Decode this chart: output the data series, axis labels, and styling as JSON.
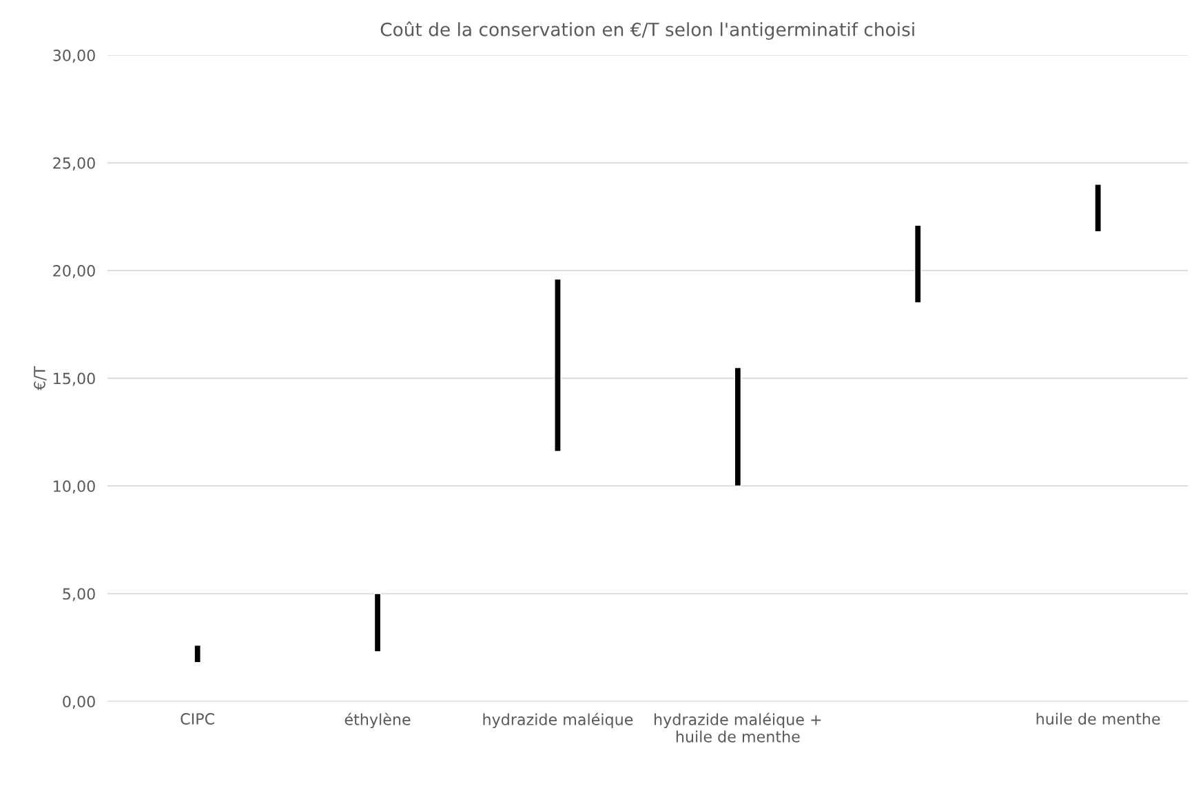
{
  "chart_data": {
    "type": "bar",
    "title": "Coût de la conservation en €/T selon l'antigerminatif choisi",
    "ylabel": "€/T",
    "categories": [
      "CIPC",
      "éthylène",
      "hydrazide maléique",
      "hydrazide maléique + huile de menthe",
      null,
      "huile de menthe"
    ],
    "base": [
      1.8,
      2.3,
      11.6,
      10.0,
      18.5,
      21.8
    ],
    "values": [
      0.8,
      2.7,
      8.0,
      5.5,
      3.6,
      2.2
    ],
    "color": "#000000",
    "ylim": [
      0,
      30
    ],
    "yticks": [
      {
        "value": 0,
        "label": "0,00"
      },
      {
        "value": 5,
        "label": "5,00"
      },
      {
        "value": 10,
        "label": "10,00"
      },
      {
        "value": 15,
        "label": "15,00"
      },
      {
        "value": 20,
        "label": "20,00"
      },
      {
        "value": 25,
        "label": "25,00"
      },
      {
        "value": 30,
        "label": "30,00"
      }
    ],
    "grid": "y"
  }
}
